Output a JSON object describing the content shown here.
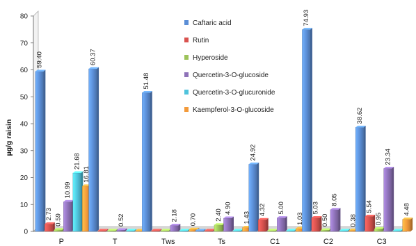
{
  "chart_data": {
    "type": "bar",
    "title": "",
    "xlabel": "",
    "ylabel": "µg/g raisin",
    "ylim": [
      0,
      80
    ],
    "yticks": [
      0,
      10,
      20,
      30,
      40,
      50,
      60,
      70,
      80
    ],
    "grid": false,
    "legend_position": "top-center",
    "categories": [
      "P",
      "T",
      "Tws",
      "Ts",
      "C1",
      "C2",
      "C3"
    ],
    "series": [
      {
        "name": "Caftaric acid",
        "color": "#5b8ed6",
        "values": [
          59.4,
          60.37,
          51.48,
          0.3,
          24.92,
          74.93,
          38.62
        ],
        "labels": [
          "59.40",
          "60.37",
          "51.48",
          "",
          "24.92",
          "74.93",
          "38.62"
        ]
      },
      {
        "name": "Rutin",
        "color": "#d9534f",
        "values": [
          2.73,
          0.3,
          0.3,
          0.3,
          4.32,
          5.03,
          5.54
        ],
        "labels": [
          "2.73",
          "",
          "",
          "",
          "4.32",
          "5.03",
          "5.54"
        ]
      },
      {
        "name": "Hyperoside",
        "color": "#9dc35a",
        "values": [
          0.59,
          0.3,
          0.3,
          2.4,
          0.3,
          0.5,
          0.95
        ],
        "labels": [
          "0.59",
          "",
          "",
          "2.40",
          "",
          "0.50",
          "0.95"
        ]
      },
      {
        "name": "Quercetin-3-O-glucoside",
        "color": "#8e72b8",
        "values": [
          10.99,
          0.52,
          2.18,
          4.9,
          5.0,
          8.05,
          23.34
        ],
        "labels": [
          "10.99",
          "0.52",
          "2.18",
          "4.90",
          "5.00",
          "8.05",
          "23.34"
        ]
      },
      {
        "name": "Quercetin-3-O-glucuronide",
        "color": "#4fc3dc",
        "values": [
          21.68,
          0.3,
          0.3,
          0.3,
          0.3,
          0.3,
          0.3
        ],
        "labels": [
          "21.68",
          "",
          "",
          "",
          "",
          "",
          ""
        ]
      },
      {
        "name": "Kaempferol-3-O-glucoside",
        "color": "#f39a3a",
        "values": [
          16.81,
          0.3,
          0.7,
          1.43,
          1.03,
          0.38,
          4.48
        ],
        "labels": [
          "16.81",
          "",
          "0.70",
          "1.43",
          "1.03",
          "0.38",
          "4.48"
        ]
      }
    ]
  }
}
